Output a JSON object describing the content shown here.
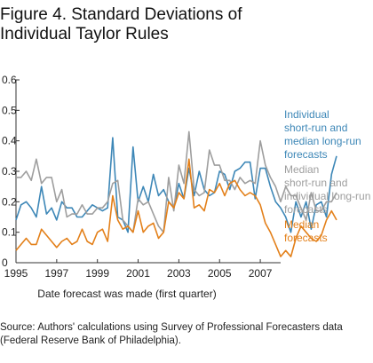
{
  "figure": {
    "title_line1": "Figure 4. Standard Deviations of",
    "title_line2": "Individual Taylor Rules",
    "source_line1": "Source: Authors' calculations using Survey of Professional Forecasters data",
    "source_line2": "(Federal Reserve Bank of Philadelphia)."
  },
  "chart_data": {
    "type": "line",
    "title": "Figure 4. Standard Deviations of Individual Taylor Rules",
    "xlabel": "Date forecast was made (first quarter)",
    "ylabel": "",
    "xlim": [
      1995,
      2008
    ],
    "ylim": [
      0,
      0.6
    ],
    "grid": false,
    "x_ticks": [
      "1995",
      "1997",
      "1999",
      "2001",
      "2003",
      "2005",
      "2007"
    ],
    "y_ticks": [
      "0",
      "0.1",
      "0.2",
      "0.3",
      "0.4",
      "0.5",
      "0.6"
    ],
    "legend_position": "right",
    "series": [
      {
        "name": "Individual short-run and median long-run forecasts",
        "legend_lines": [
          "Individual",
          "short-run and",
          "median long-run",
          "forecasts"
        ],
        "color": "#3d87b7",
        "start": 1995.0,
        "step": 0.25,
        "values": [
          0.14,
          0.19,
          0.2,
          0.18,
          0.15,
          0.25,
          0.16,
          0.18,
          0.14,
          0.2,
          0.18,
          0.18,
          0.15,
          0.15,
          0.17,
          0.19,
          0.18,
          0.17,
          0.18,
          0.41,
          0.15,
          0.14,
          0.1,
          0.38,
          0.2,
          0.25,
          0.2,
          0.29,
          0.22,
          0.24,
          0.2,
          0.18,
          0.26,
          0.21,
          0.31,
          0.22,
          0.3,
          0.24,
          0.22,
          0.23,
          0.3,
          0.29,
          0.24,
          0.3,
          0.31,
          0.33,
          0.33,
          0.21,
          0.31,
          0.31,
          0.25,
          0.2,
          0.18,
          0.15,
          0.1,
          0.2,
          0.15,
          0.2,
          0.11,
          0.19,
          0.2,
          0.15,
          0.29,
          0.35
        ]
      },
      {
        "name": "Median short-run and individual long-run forecasts",
        "legend_lines": [
          "Median",
          "short-run and",
          "individual long-run",
          "forecasts"
        ],
        "color": "#9e9e9e",
        "start": 1995.0,
        "step": 0.25,
        "values": [
          0.28,
          0.28,
          0.3,
          0.27,
          0.34,
          0.26,
          0.28,
          0.28,
          0.2,
          0.24,
          0.15,
          0.16,
          0.16,
          0.19,
          0.16,
          0.16,
          0.18,
          0.18,
          0.2,
          0.26,
          0.27,
          0.14,
          0.12,
          0.1,
          0.21,
          0.19,
          0.2,
          0.16,
          0.12,
          0.1,
          0.28,
          0.17,
          0.32,
          0.26,
          0.43,
          0.24,
          0.22,
          0.23,
          0.37,
          0.32,
          0.32,
          0.27,
          0.27,
          0.24,
          0.28,
          0.26,
          0.27,
          0.26,
          0.4,
          0.32,
          0.28,
          0.25,
          0.2,
          0.25,
          0.22,
          0.22,
          0.18,
          0.14,
          0.23,
          0.17,
          0.17,
          0.2,
          0.2,
          0.23
        ]
      },
      {
        "name": "Median forecasts",
        "legend_lines": [
          "Median",
          "forecasts"
        ],
        "color": "#e3801a",
        "start": 1995.0,
        "step": 0.25,
        "values": [
          0.04,
          0.06,
          0.08,
          0.06,
          0.06,
          0.11,
          0.09,
          0.07,
          0.05,
          0.07,
          0.08,
          0.06,
          0.07,
          0.11,
          0.07,
          0.06,
          0.1,
          0.11,
          0.07,
          0.22,
          0.14,
          0.11,
          0.12,
          0.1,
          0.17,
          0.1,
          0.12,
          0.13,
          0.08,
          0.1,
          0.2,
          0.18,
          0.23,
          0.21,
          0.34,
          0.18,
          0.19,
          0.17,
          0.24,
          0.23,
          0.26,
          0.22,
          0.26,
          0.27,
          0.24,
          0.22,
          0.23,
          0.22,
          0.19,
          0.13,
          0.1,
          0.06,
          0.02,
          0.04,
          0.02,
          0.08,
          0.12,
          0.1,
          0.08,
          0.07,
          0.09,
          0.14,
          0.17,
          0.14
        ]
      }
    ]
  }
}
